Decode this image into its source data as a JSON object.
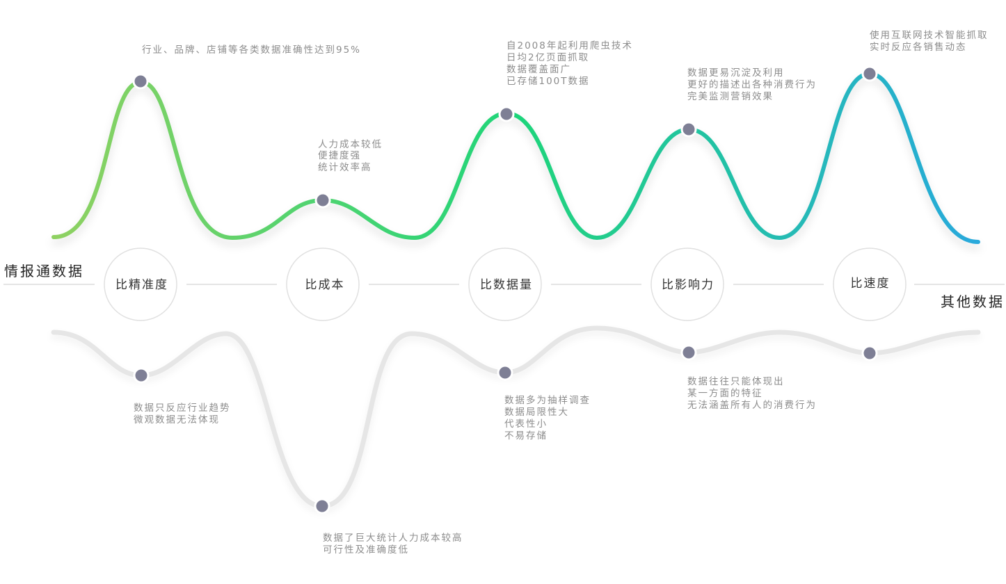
{
  "left_label": "情报通数据",
  "right_label": "其他数据",
  "colors": {
    "gradient_start": "#8fd162",
    "gradient_mid": "#1fd57a",
    "gradient_end": "#29a9dc",
    "bottom_wave": "#e6e6e6",
    "dot": "#7e7f95"
  },
  "comparisons": [
    {
      "label": "比精准度",
      "top_notes": [
        "行业、品牌、店铺等各类数据准确性达到95%"
      ],
      "bottom_notes": [
        "数据只反应行业趋势",
        "微观数据无法体现"
      ]
    },
    {
      "label": "比成本",
      "top_notes": [
        "人力成本较低",
        "便捷度强",
        "统计效率高"
      ],
      "bottom_notes": [
        "数据了巨大统计人力成本较高",
        "可行性及准确度低"
      ]
    },
    {
      "label": "比数据量",
      "top_notes": [
        "自2008年起利用爬虫技术",
        "日均2亿页面抓取",
        "数据覆盖面广",
        "已存储100T数据"
      ],
      "bottom_notes": [
        "数据多为抽样调查",
        "数据局限性大",
        "代表性小",
        "不易存储"
      ]
    },
    {
      "label": "比影响力",
      "top_notes": [
        "数据更易沉淀及利用",
        "更好的描述出各种消费行为",
        "完美监测营销效果"
      ],
      "bottom_notes": [
        "数据往往只能体现出",
        "某一方面的特征",
        "无法涵盖所有人的消费行为"
      ]
    },
    {
      "label": "比速度",
      "top_notes": [
        "使用互联网技术智能抓取",
        "实时反应各销售动态"
      ],
      "bottom_notes": []
    }
  ]
}
